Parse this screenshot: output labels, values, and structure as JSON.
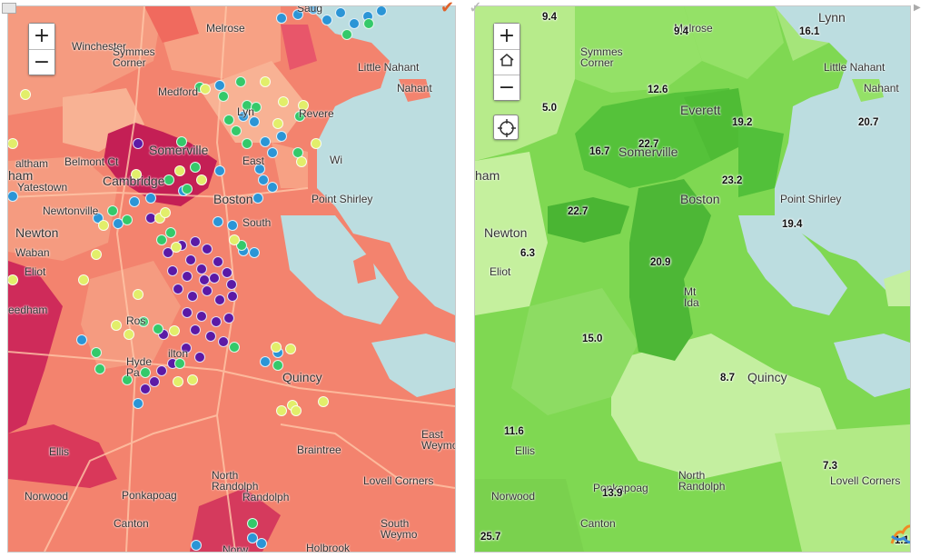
{
  "left_map": {
    "toggle_icon": "collapse-panel-icon",
    "selected_check": "✔",
    "check_color": "#e0622a",
    "zoom_in": "+",
    "zoom_out": "−",
    "places": [
      {
        "key": "saug",
        "label": "Saug"
      },
      {
        "key": "melrose",
        "label": "Melrose"
      },
      {
        "key": "winchester",
        "label": "Winchester"
      },
      {
        "key": "symmes",
        "label": "Symmes\nCorner"
      },
      {
        "key": "medford",
        "label": "Medford"
      },
      {
        "key": "little_nahant",
        "label": "Little Nahant"
      },
      {
        "key": "nahant",
        "label": "Nahant"
      },
      {
        "key": "lynn",
        "label": "Lyn"
      },
      {
        "key": "revere",
        "label": "Revere"
      },
      {
        "key": "somerville",
        "label": "Somerville"
      },
      {
        "key": "cambridge",
        "label": "Cambridge"
      },
      {
        "key": "ham",
        "label": "ham"
      },
      {
        "key": "waltham",
        "label": "altham"
      },
      {
        "key": "yatestown",
        "label": "Yatestown"
      },
      {
        "key": "belmont",
        "label": "Belmont Ct"
      },
      {
        "key": "boston",
        "label": "Boston"
      },
      {
        "key": "east",
        "label": "East"
      },
      {
        "key": "wi",
        "label": "Wi"
      },
      {
        "key": "point_shirley",
        "label": "Point Shirley"
      },
      {
        "key": "newtonville",
        "label": "Newtonville"
      },
      {
        "key": "newton",
        "label": "Newton"
      },
      {
        "key": "waban",
        "label": "Waban"
      },
      {
        "key": "eliot",
        "label": "Eliot"
      },
      {
        "key": "needham",
        "label": "eedham"
      },
      {
        "key": "south",
        "label": "South"
      },
      {
        "key": "roslindale",
        "label": "Ros"
      },
      {
        "key": "hyde_park",
        "label": "Hyde\nPa"
      },
      {
        "key": "milton",
        "label": "ilton"
      },
      {
        "key": "quincy",
        "label": "Quincy"
      },
      {
        "key": "ellis",
        "label": "Ellis"
      },
      {
        "key": "braintree",
        "label": "Braintree"
      },
      {
        "key": "east_weymouth",
        "label": "East\nWeymouth"
      },
      {
        "key": "lovell",
        "label": "Lovell Corners"
      },
      {
        "key": "norwood",
        "label": "Norwood"
      },
      {
        "key": "ponkapoag",
        "label": "Ponkapoag"
      },
      {
        "key": "north_randolph",
        "label": "North\nRandolph"
      },
      {
        "key": "randolph",
        "label": "Randolph"
      },
      {
        "key": "canton",
        "label": "Canton"
      },
      {
        "key": "south_weymouth",
        "label": "South\nWeymo"
      },
      {
        "key": "holbrook",
        "label": "Holbrook"
      },
      {
        "key": "norw",
        "label": "Norw"
      }
    ],
    "point_colors": {
      "purple": "#5b1aa6",
      "blue": "#2b95d6",
      "green": "#34c96a",
      "yellow": "#e2ee6a"
    }
  },
  "right_map": {
    "check_icon": "✓",
    "zoom_in": "+",
    "home_icon": "home-icon",
    "zoom_out": "−",
    "locate_icon": "locate-icon",
    "places": [
      {
        "key": "melrose",
        "label": "Melrose"
      },
      {
        "key": "lynn",
        "label": "Lynn"
      },
      {
        "key": "symmes",
        "label": "Symmes\nCorner"
      },
      {
        "key": "little_nahant",
        "label": "Little Nahant"
      },
      {
        "key": "nahant",
        "label": "Nahant"
      },
      {
        "key": "everett",
        "label": "Everett"
      },
      {
        "key": "somerville",
        "label": "Somerville"
      },
      {
        "key": "ham",
        "label": "ham"
      },
      {
        "key": "boston",
        "label": "Boston"
      },
      {
        "key": "point_shirley",
        "label": "Point Shirley"
      },
      {
        "key": "newton",
        "label": "Newton"
      },
      {
        "key": "eliot",
        "label": "Eliot"
      },
      {
        "key": "mt_ida",
        "label": "Mt\nIda"
      },
      {
        "key": "quincy",
        "label": "Quincy"
      },
      {
        "key": "ellis",
        "label": "Ellis"
      },
      {
        "key": "north_randolph",
        "label": "North\nRandolph"
      },
      {
        "key": "ponkapoag",
        "label": "Ponkapoag"
      },
      {
        "key": "lovell",
        "label": "Lovell Corners"
      },
      {
        "key": "norwood",
        "label": "Norwood"
      },
      {
        "key": "canton",
        "label": "Canton"
      }
    ],
    "values": [
      {
        "key": "v1",
        "label": "9.4"
      },
      {
        "key": "v2",
        "label": "9.4"
      },
      {
        "key": "v3",
        "label": "16.1"
      },
      {
        "key": "v4",
        "label": "12.6"
      },
      {
        "key": "v5",
        "label": "5.0"
      },
      {
        "key": "v6",
        "label": "20.7"
      },
      {
        "key": "v7",
        "label": "19.2"
      },
      {
        "key": "v8",
        "label": "22.7"
      },
      {
        "key": "v9",
        "label": "16.7"
      },
      {
        "key": "v10",
        "label": "23.2"
      },
      {
        "key": "v11",
        "label": "22.7"
      },
      {
        "key": "v12",
        "label": "19.4"
      },
      {
        "key": "v13",
        "label": "6.3"
      },
      {
        "key": "v14",
        "label": "20.9"
      },
      {
        "key": "v15",
        "label": "15.0"
      },
      {
        "key": "v16",
        "label": "8.7"
      },
      {
        "key": "v17",
        "label": "11.6"
      },
      {
        "key": "v18",
        "label": "7.3"
      },
      {
        "key": "v19",
        "label": "13.9"
      },
      {
        "key": "v20",
        "label": "25.7"
      },
      {
        "key": "v21",
        "label": "1.1"
      }
    ],
    "logo_icon": "app-logo-icon"
  }
}
